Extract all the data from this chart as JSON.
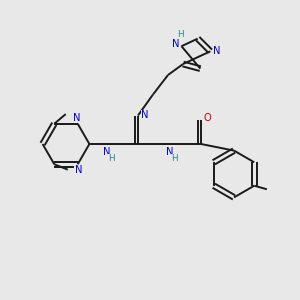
{
  "bg_color": "#e8e8e8",
  "bond_color": "#1a1a1a",
  "N_color": "#0000cc",
  "O_color": "#cc0000",
  "H_color": "#2a8888",
  "figsize": [
    3.0,
    3.0
  ],
  "dpi": 100,
  "xlim": [
    0,
    10
  ],
  "ylim": [
    0,
    10
  ]
}
